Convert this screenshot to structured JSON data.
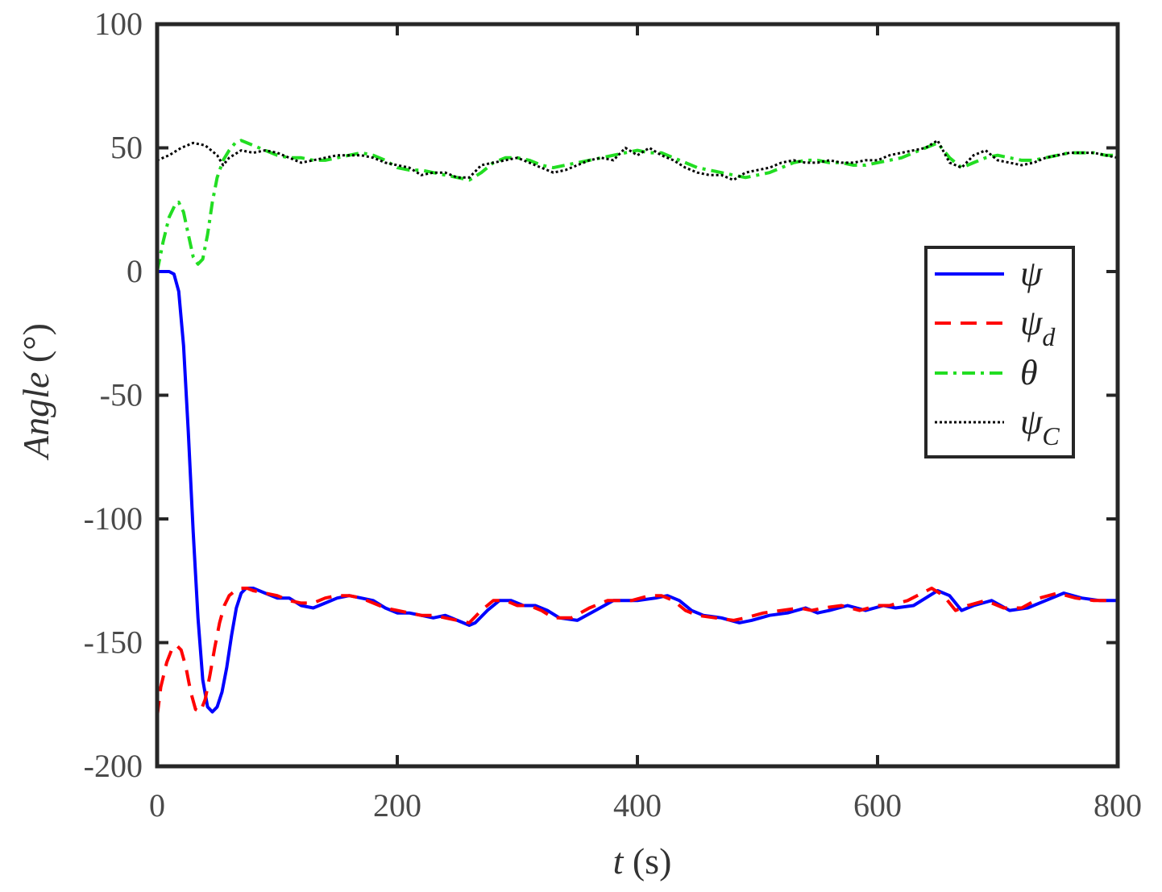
{
  "chart_data": {
    "type": "line",
    "xlabel": {
      "var": "t",
      "unit": " (s)"
    },
    "ylabel": {
      "var": "Angle",
      "unit": " (°)"
    },
    "xlim": [
      0,
      800
    ],
    "ylim": [
      -200,
      100
    ],
    "xticks": [
      0,
      200,
      400,
      600,
      800
    ],
    "yticks": [
      -200,
      -150,
      -100,
      -50,
      0,
      50,
      100
    ],
    "xtick_labels": [
      "0",
      "200",
      "400",
      "600",
      "800"
    ],
    "ytick_labels": [
      "-200",
      "-150",
      "-100",
      "-50",
      "0",
      "50",
      "100"
    ],
    "grid": false,
    "legend_position": "right",
    "series": [
      {
        "name": "ψ",
        "name_sub": "",
        "color": "#0000ff",
        "style": "solid",
        "x": [
          0,
          10,
          14,
          18,
          22,
          26,
          30,
          34,
          38,
          42,
          46,
          50,
          54,
          58,
          62,
          66,
          70,
          74,
          80,
          90,
          100,
          110,
          120,
          130,
          140,
          150,
          160,
          170,
          180,
          190,
          200,
          210,
          220,
          230,
          240,
          250,
          260,
          265,
          275,
          285,
          295,
          305,
          315,
          325,
          335,
          350,
          365,
          380,
          390,
          400,
          415,
          425,
          435,
          445,
          455,
          470,
          485,
          495,
          510,
          525,
          540,
          550,
          560,
          575,
          590,
          605,
          615,
          630,
          650,
          660,
          670,
          680,
          695,
          710,
          725,
          740,
          755,
          770,
          785,
          800
        ],
        "y": [
          0,
          0,
          -1,
          -8,
          -30,
          -65,
          -105,
          -140,
          -165,
          -176,
          -178,
          -176,
          -170,
          -160,
          -147,
          -136,
          -130,
          -128,
          -128,
          -130,
          -132,
          -132,
          -135,
          -136,
          -134,
          -132,
          -131,
          -132,
          -133,
          -136,
          -138,
          -138,
          -139,
          -140,
          -139,
          -141,
          -143,
          -142,
          -137,
          -133,
          -133,
          -135,
          -135,
          -137,
          -140,
          -141,
          -137,
          -133,
          -133,
          -133,
          -132,
          -131,
          -133,
          -137,
          -139,
          -140,
          -142,
          -141,
          -139,
          -138,
          -136,
          -138,
          -137,
          -135,
          -137,
          -135,
          -136,
          -135,
          -129,
          -131,
          -137,
          -135,
          -133,
          -137,
          -136,
          -133,
          -130,
          -132,
          -133,
          -133
        ]
      },
      {
        "name": "ψ",
        "name_sub": "d",
        "color": "#ff0000",
        "style": "dashed",
        "x": [
          0,
          3,
          8,
          12,
          16,
          20,
          24,
          28,
          32,
          36,
          40,
          44,
          48,
          52,
          56,
          60,
          65,
          70,
          75,
          80,
          90,
          100,
          110,
          120,
          130,
          140,
          150,
          160,
          170,
          180,
          190,
          200,
          210,
          220,
          230,
          240,
          250,
          260,
          270,
          280,
          290,
          300,
          310,
          320,
          330,
          345,
          360,
          375,
          385,
          395,
          410,
          420,
          430,
          440,
          450,
          465,
          480,
          490,
          505,
          520,
          535,
          545,
          555,
          570,
          585,
          600,
          610,
          625,
          645,
          655,
          665,
          675,
          690,
          705,
          720,
          735,
          750,
          765,
          780,
          800
        ],
        "y": [
          -180,
          -168,
          -158,
          -153,
          -151,
          -153,
          -160,
          -170,
          -177,
          -178,
          -173,
          -163,
          -152,
          -142,
          -135,
          -131,
          -129,
          -128,
          -128,
          -129,
          -130,
          -131,
          -133,
          -134,
          -134,
          -132,
          -131,
          -131,
          -132,
          -134,
          -136,
          -137,
          -138,
          -139,
          -139,
          -140,
          -141,
          -142,
          -137,
          -133,
          -133,
          -135,
          -135,
          -137,
          -140,
          -140,
          -136,
          -133,
          -133,
          -133,
          -131,
          -131,
          -133,
          -137,
          -139,
          -140,
          -141,
          -140,
          -138,
          -137,
          -136,
          -137,
          -136,
          -135,
          -137,
          -135,
          -135,
          -133,
          -128,
          -131,
          -137,
          -135,
          -133,
          -136,
          -136,
          -132,
          -130,
          -132,
          -133,
          -133
        ]
      },
      {
        "name": "θ",
        "name_sub": "",
        "color": "#22dd22",
        "style": "dashdot",
        "x": [
          0,
          5,
          10,
          15,
          18,
          22,
          26,
          30,
          34,
          38,
          42,
          46,
          50,
          55,
          60,
          65,
          70,
          75,
          80,
          90,
          100,
          110,
          120,
          130,
          140,
          150,
          160,
          170,
          180,
          190,
          200,
          210,
          220,
          230,
          240,
          250,
          260,
          270,
          280,
          290,
          300,
          310,
          320,
          330,
          340,
          350,
          360,
          370,
          380,
          390,
          400,
          410,
          420,
          430,
          440,
          450,
          460,
          470,
          480,
          490,
          500,
          510,
          520,
          530,
          540,
          550,
          560,
          570,
          580,
          590,
          600,
          610,
          620,
          630,
          640,
          650,
          660,
          670,
          680,
          690,
          700,
          710,
          720,
          730,
          740,
          750,
          760,
          770,
          780,
          790,
          800
        ],
        "y": [
          0,
          12,
          22,
          27,
          28,
          24,
          15,
          6,
          3,
          5,
          15,
          28,
          38,
          45,
          49,
          52,
          53,
          52,
          51,
          49,
          47,
          46,
          46,
          45,
          45,
          46,
          47,
          48,
          47,
          45,
          42,
          41,
          41,
          40,
          39,
          38,
          37,
          40,
          44,
          46,
          46,
          45,
          43,
          42,
          43,
          44,
          45,
          46,
          47,
          48,
          49,
          48,
          48,
          46,
          44,
          42,
          41,
          40,
          39,
          38,
          39,
          40,
          42,
          44,
          45,
          45,
          44,
          44,
          43,
          43,
          44,
          45,
          46,
          48,
          50,
          52,
          46,
          42,
          44,
          46,
          47,
          46,
          45,
          45,
          46,
          47,
          48,
          48,
          48,
          47,
          47
        ]
      },
      {
        "name": "ψ",
        "name_sub": "C",
        "color": "#000000",
        "style": "dotted",
        "x": [
          0,
          10,
          20,
          30,
          40,
          50,
          55,
          60,
          70,
          80,
          90,
          100,
          110,
          120,
          130,
          140,
          150,
          160,
          170,
          180,
          190,
          200,
          210,
          220,
          230,
          240,
          250,
          260,
          270,
          280,
          290,
          300,
          310,
          320,
          330,
          340,
          350,
          360,
          370,
          380,
          390,
          400,
          410,
          420,
          430,
          440,
          450,
          460,
          470,
          480,
          490,
          500,
          510,
          520,
          530,
          540,
          550,
          560,
          570,
          580,
          590,
          600,
          610,
          620,
          630,
          640,
          650,
          660,
          670,
          680,
          690,
          700,
          710,
          720,
          730,
          740,
          750,
          760,
          770,
          780,
          790,
          800
        ],
        "y": [
          45,
          47,
          50,
          52,
          51,
          47,
          43,
          46,
          49,
          48,
          49,
          48,
          46,
          44,
          45,
          46,
          47,
          47,
          47,
          46,
          44,
          43,
          42,
          39,
          40,
          40,
          38,
          38,
          43,
          44,
          45,
          46,
          44,
          42,
          40,
          41,
          43,
          45,
          46,
          45,
          50,
          47,
          50,
          47,
          45,
          42,
          40,
          39,
          39,
          37,
          40,
          41,
          42,
          44,
          45,
          44,
          44,
          45,
          44,
          44,
          45,
          45,
          47,
          48,
          49,
          50,
          53,
          44,
          42,
          47,
          49,
          45,
          44,
          43,
          44,
          46,
          47,
          48,
          48,
          48,
          47,
          46
        ]
      }
    ]
  }
}
